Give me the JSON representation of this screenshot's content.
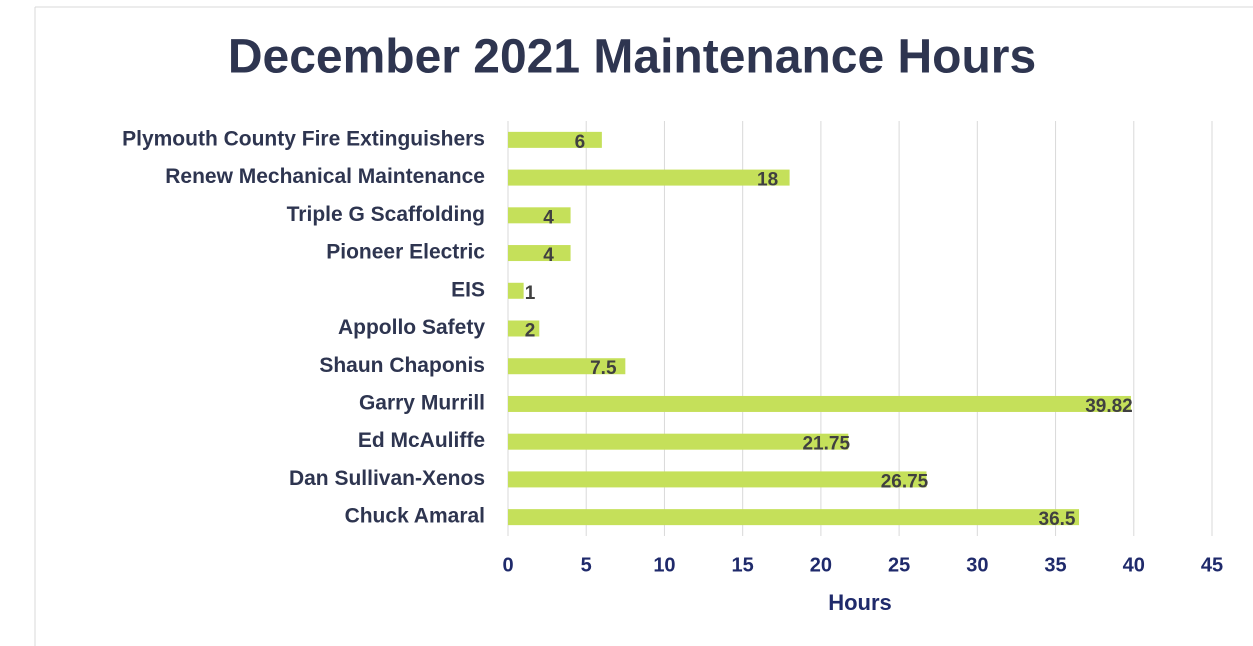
{
  "chart_data": {
    "type": "barh",
    "title": "December 2021 Maintenance Hours",
    "x_label": "Hours",
    "categories": [
      "Plymouth County Fire Extinguishers",
      "Renew Mechanical Maintenance",
      "Triple G Scaffolding",
      "Pioneer Electric",
      "EIS",
      "Appollo Safety",
      "Shaun Chaponis",
      "Garry Murrill",
      "Ed McAuliffe",
      "Dan Sullivan-Xenos",
      "Chuck Amaral"
    ],
    "values": [
      6,
      18,
      4,
      4,
      1,
      2,
      7.5,
      39.82,
      21.75,
      26.75,
      36.5
    ],
    "color": "#c5e05a",
    "xlim": [
      0,
      45
    ],
    "xticks": [
      0,
      5,
      10,
      15,
      20,
      25,
      30,
      35,
      40,
      45
    ],
    "grid": true
  }
}
